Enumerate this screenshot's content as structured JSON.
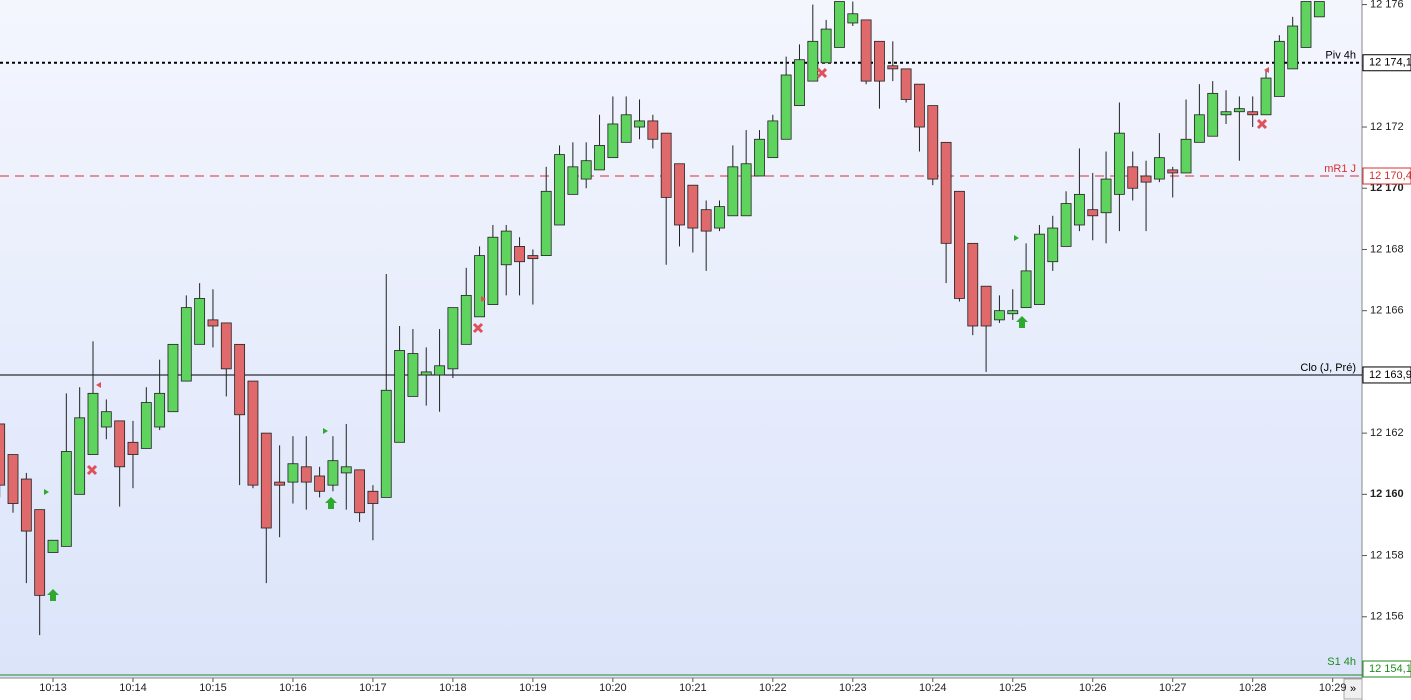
{
  "chart_data": {
    "type": "candlestick",
    "categories": [
      null,
      null,
      null,
      null,
      "10:13",
      null,
      null,
      null,
      null,
      null,
      "10:14",
      null,
      null,
      null,
      null,
      null,
      "10:15",
      null,
      null,
      null,
      null,
      null,
      "10:16",
      null,
      null,
      null,
      null,
      null,
      "10:17",
      null,
      null,
      null,
      null,
      null,
      "10:18",
      null,
      null,
      null,
      null,
      null,
      "10:19",
      null,
      null,
      null,
      null,
      null,
      "10:20",
      null,
      null,
      null,
      null,
      null,
      "10:21",
      null,
      null,
      null,
      null,
      null,
      "10:22",
      null,
      null,
      null,
      null,
      null,
      "10:23",
      null,
      null,
      null,
      null,
      null,
      "10:24",
      null,
      null,
      null,
      null,
      null,
      "10:25",
      null,
      null,
      null,
      null,
      null,
      "10:26",
      null,
      null,
      null,
      null,
      null,
      "10:27",
      null,
      null,
      null,
      null,
      null,
      "10:28",
      null,
      null,
      null,
      null,
      null,
      "10:29"
    ],
    "open": [
      12162.3,
      12161.3,
      12160.5,
      12159.5,
      12158.1,
      12158.3,
      12160.0,
      12161.3,
      12162.2,
      12162.4,
      12161.7,
      12161.5,
      12162.2,
      12162.7,
      12163.7,
      12164.9,
      12165.7,
      12165.6,
      12164.9,
      12163.7,
      12162.0,
      12160.4,
      12160.4,
      12160.9,
      12160.6,
      12160.3,
      12160.7,
      12160.8,
      12160.1,
      12159.9,
      12161.7,
      12163.2,
      12163.9,
      12163.9,
      12164.1,
      12164.9,
      12165.8,
      12166.2,
      12167.5,
      12168.1,
      12167.8,
      12167.8,
      12168.8,
      12169.8,
      12170.3,
      12170.6,
      12171.0,
      12171.5,
      12172.0,
      12172.2,
      12171.8,
      12170.8,
      12170.1,
      12169.3,
      12168.7,
      12169.1,
      12169.1,
      12170.4,
      12171.0,
      12171.6,
      12172.7,
      12173.5,
      12174.1,
      12174.6,
      12175.4,
      12175.5,
      12174.8,
      12174.0,
      12173.9,
      12173.4,
      12172.7,
      12171.5,
      12169.9,
      12168.2,
      12166.8,
      12165.7,
      12165.9,
      12166.1,
      12166.2,
      12167.6,
      12168.1,
      12168.8,
      12169.3,
      12169.2,
      12169.8,
      12170.7,
      12170.4,
      12170.3,
      12170.6,
      12170.5,
      12171.5,
      12171.7,
      12172.4,
      12172.5,
      12172.5,
      12172.4,
      12173.0,
      12173.9,
      12174.6,
      12175.6,
      null
    ],
    "high": [
      12162.3,
      12161.3,
      12160.7,
      12159.5,
      12158.5,
      12163.3,
      12163.5,
      12165.0,
      12163.1,
      12162.4,
      12162.4,
      12163.5,
      12164.4,
      12164.9,
      12166.5,
      12166.9,
      12166.7,
      12165.6,
      12164.9,
      12163.7,
      12162.0,
      12161.6,
      12161.9,
      12161.9,
      12160.9,
      12161.9,
      12162.3,
      12160.8,
      12160.3,
      12167.2,
      12165.5,
      12165.4,
      12164.8,
      12165.4,
      12166.1,
      12167.4,
      12168.1,
      12168.8,
      12168.8,
      12168.4,
      12168.0,
      12170.7,
      12171.4,
      12171.5,
      12171.5,
      12172.4,
      12173.0,
      12173.0,
      12172.9,
      12172.4,
      12171.8,
      12170.8,
      12170.1,
      12169.6,
      12169.6,
      12171.4,
      12171.9,
      12171.9,
      12172.4,
      12174.3,
      12174.7,
      12176.0,
      12175.5,
      12176.1,
      12176.1,
      12175.5,
      12174.8,
      12174.8,
      12173.9,
      12173.4,
      12172.7,
      12171.5,
      12169.9,
      12168.2,
      12166.8,
      12166.5,
      12166.7,
      12168.2,
      12168.8,
      12169.1,
      12169.9,
      12171.3,
      12170.5,
      12171.2,
      12172.8,
      12171.2,
      12170.9,
      12171.8,
      12170.7,
      12172.9,
      12173.4,
      12173.5,
      12173.2,
      12173.0,
      12173.0,
      12173.9,
      12175.0,
      12175.6,
      12176.1,
      12176.1,
      null
    ],
    "low": [
      12159.9,
      12159.4,
      12157.1,
      12155.4,
      12158.1,
      12158.3,
      12160.0,
      12161.3,
      12161.8,
      12159.6,
      12160.2,
      12161.5,
      12162.1,
      12162.7,
      12163.7,
      12164.9,
      12164.8,
      12163.2,
      12160.3,
      12160.2,
      12157.1,
      12158.6,
      12159.7,
      12159.5,
      12159.9,
      12160.1,
      12159.5,
      12159.1,
      12158.5,
      12159.9,
      12161.7,
      12163.2,
      12162.9,
      12162.7,
      12163.8,
      12164.9,
      12165.8,
      12166.2,
      12166.5,
      12166.5,
      12166.2,
      12167.8,
      12168.8,
      12169.8,
      12170.0,
      12170.6,
      12171.0,
      12171.5,
      12171.6,
      12171.3,
      12167.5,
      12168.1,
      12167.9,
      12167.3,
      12168.6,
      12169.1,
      12169.1,
      12170.4,
      12171.0,
      12171.6,
      12172.7,
      12173.5,
      12174.1,
      12174.6,
      12175.3,
      12173.4,
      12172.6,
      12173.5,
      12172.8,
      12171.2,
      12170.1,
      12166.9,
      12166.3,
      12165.2,
      12164.0,
      12165.6,
      12165.7,
      12166.1,
      12166.2,
      12167.3,
      12168.1,
      12168.6,
      12168.3,
      12168.2,
      12168.6,
      12169.6,
      12168.6,
      12170.2,
      12169.7,
      12170.5,
      12171.5,
      12171.7,
      12172.1,
      12170.9,
      12172.0,
      12172.4,
      12173.0,
      12173.9,
      12174.6,
      12175.6,
      null
    ],
    "close": [
      12160.3,
      12159.7,
      12158.8,
      12156.7,
      12158.5,
      12161.4,
      12162.5,
      12163.3,
      12162.7,
      12160.9,
      12161.3,
      12163.0,
      12163.3,
      12164.9,
      12166.1,
      12166.4,
      12165.5,
      12164.1,
      12162.6,
      12160.3,
      12158.9,
      12160.3,
      12161.0,
      12160.4,
      12160.1,
      12161.1,
      12160.9,
      12159.4,
      12159.7,
      12163.4,
      12164.7,
      12164.6,
      12164.0,
      12164.2,
      12166.1,
      12166.5,
      12167.8,
      12168.4,
      12168.6,
      12167.6,
      12167.7,
      12169.9,
      12171.1,
      12170.7,
      12170.9,
      12171.4,
      12172.1,
      12172.4,
      12172.2,
      12171.6,
      12169.7,
      12168.8,
      12168.7,
      12168.6,
      12169.4,
      12170.7,
      12170.8,
      12171.6,
      12172.2,
      12173.7,
      12174.2,
      12174.8,
      12175.2,
      12176.1,
      12175.7,
      12173.5,
      12173.5,
      12173.9,
      12172.9,
      12172.0,
      12170.3,
      12168.2,
      12166.4,
      12165.5,
      12165.5,
      12166.0,
      12166.0,
      12167.3,
      12168.5,
      12168.7,
      12169.5,
      12169.8,
      12169.1,
      12170.3,
      12171.8,
      12170.0,
      12170.2,
      12171.0,
      12170.5,
      12171.6,
      12172.4,
      12173.1,
      12172.5,
      12172.6,
      12172.4,
      12173.6,
      12174.8,
      12175.3,
      12176.1,
      12176.1,
      null
    ],
    "up_color": "#5ed35e",
    "down_color": "#e0696b",
    "ylim": [
      12154,
      12176.15
    ],
    "yticks": [
      {
        "value": 12156,
        "label": "12 156"
      },
      {
        "value": 12158,
        "label": "12 158"
      },
      {
        "value": 12160,
        "label": "12 160"
      },
      {
        "value": 12162,
        "label": "12 162"
      },
      {
        "value": 12164,
        "label": "12 164"
      },
      {
        "value": 12166,
        "label": "12 166"
      },
      {
        "value": 12168,
        "label": "12 168"
      },
      {
        "value": 12170,
        "label": "12 170"
      },
      {
        "value": 12172,
        "label": "12 172"
      },
      {
        "value": 12174,
        "label": "12 174"
      },
      {
        "value": 12176,
        "label": "12 176"
      }
    ],
    "levels": [
      {
        "name": "Piv 4h",
        "value": 12174.1,
        "label": "12 174,1",
        "color": "#000000",
        "style": "dotted"
      },
      {
        "name": "mR1 J",
        "value": 12170.4,
        "label": "12 170,4",
        "color": "#d9302f",
        "style": "dashed"
      },
      {
        "name": "Clo (J, Pré)",
        "value": 12163.9,
        "label": "12 163,9",
        "color": "#000000",
        "style": "solid"
      },
      {
        "name": "S1 4h",
        "value": 12154.1,
        "label": "12 154,1",
        "color": "#1e8c1e",
        "style": "solid"
      }
    ],
    "nav_button": "»"
  }
}
